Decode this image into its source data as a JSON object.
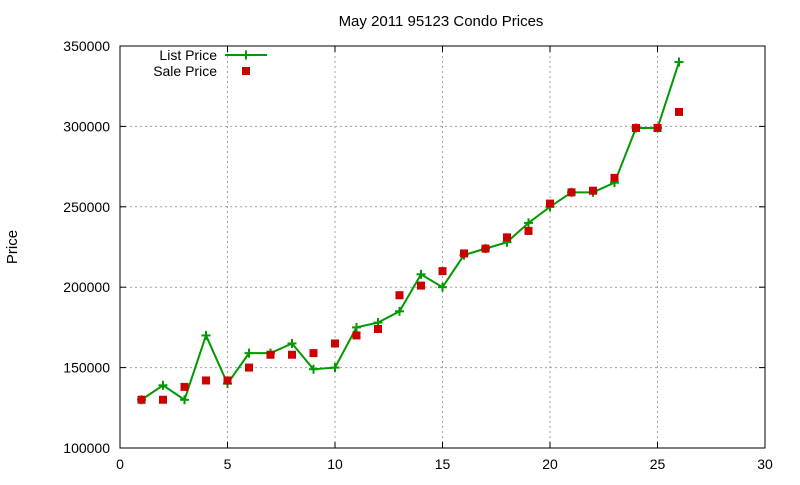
{
  "chart_data": {
    "type": "line",
    "title": "May 2011 95123 Condo Prices",
    "xlabel": "",
    "ylabel": "Price",
    "xlim": [
      0,
      30
    ],
    "ylim": [
      100000,
      350000
    ],
    "x_ticks": [
      0,
      5,
      10,
      15,
      20,
      25,
      30
    ],
    "y_ticks": [
      100000,
      150000,
      200000,
      250000,
      300000,
      350000
    ],
    "grid": true,
    "legend_position": "top-left",
    "series": [
      {
        "name": "List Price",
        "kind": "line-with-plus-markers",
        "color": "#009900",
        "x": [
          1,
          2,
          3,
          4,
          5,
          6,
          7,
          8,
          9,
          10,
          11,
          12,
          13,
          14,
          15,
          16,
          17,
          18,
          19,
          20,
          21,
          22,
          23,
          24,
          25,
          26
        ],
        "values": [
          130000,
          139000,
          130000,
          170000,
          140000,
          159000,
          159000,
          165000,
          149000,
          150000,
          175000,
          178000,
          185000,
          208000,
          200000,
          220000,
          224000,
          228000,
          240000,
          250000,
          259000,
          259000,
          265000,
          299000,
          299000,
          340000
        ]
      },
      {
        "name": "Sale Price",
        "kind": "square-markers",
        "color": "#cc0000",
        "x": [
          1,
          2,
          3,
          4,
          5,
          6,
          7,
          8,
          9,
          10,
          11,
          12,
          13,
          14,
          15,
          16,
          17,
          18,
          19,
          20,
          21,
          22,
          23,
          24,
          25,
          26
        ],
        "values": [
          130000,
          130000,
          138000,
          142000,
          142000,
          150000,
          158000,
          158000,
          159000,
          165000,
          170000,
          174000,
          195000,
          201000,
          210000,
          221000,
          224000,
          231000,
          235000,
          252000,
          259000,
          260000,
          268000,
          299000,
          299000,
          309000
        ]
      }
    ]
  }
}
